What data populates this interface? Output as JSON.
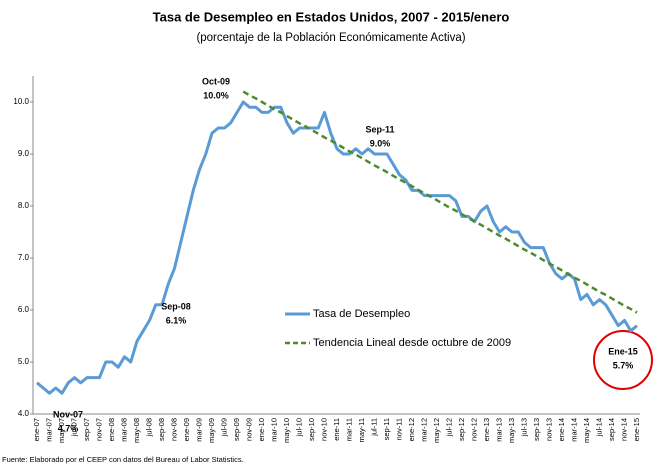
{
  "chart_data": {
    "type": "line",
    "title": "Tasa de Desempleo en Estados Unidos, 2007 - 2015/enero",
    "subtitle": "(porcentaje de la Población Económicamente Activa)",
    "source": "Fuente: Elaborado por el CEEP con datos del Bureau of Labor Statistics.",
    "categories": [
      "ene-07",
      null,
      "mar-07",
      null,
      "may-07",
      null,
      "jul-07",
      null,
      "sep-07",
      null,
      "nov-07",
      null,
      "ene-08",
      null,
      "mar-08",
      null,
      "may-08",
      null,
      "jul-08",
      null,
      "sep-08",
      null,
      "nov-08",
      null,
      "ene-09",
      null,
      "mar-09",
      null,
      "may-09",
      null,
      "jul-09",
      null,
      "sep-09",
      null,
      "nov-09",
      null,
      "ene-10",
      null,
      "mar-10",
      null,
      "may-10",
      null,
      "jul-10",
      null,
      "sep-10",
      null,
      "nov-10",
      null,
      "ene-11",
      null,
      "mar-11",
      null,
      "may-11",
      null,
      "jul-11",
      null,
      "sep-11",
      null,
      "nov-11",
      null,
      "ene-12",
      null,
      "mar-12",
      null,
      "may-12",
      null,
      "jul-12",
      null,
      "sep-12",
      null,
      "nov-12",
      null,
      "ene-13",
      null,
      "mar-13",
      null,
      "may-13",
      null,
      "jul-13",
      null,
      "sep-13",
      null,
      "nov-13",
      null,
      "ene-14",
      null,
      "mar-14",
      null,
      "may-14",
      null,
      "jul-14",
      null,
      "sep-14",
      null,
      "nov-14",
      null,
      "ene-15"
    ],
    "series": [
      {
        "name": "Tasa de Desempleo",
        "color": "#5b9bd5",
        "dashed": false,
        "values": [
          4.6,
          4.5,
          4.4,
          4.5,
          4.4,
          4.6,
          4.7,
          4.6,
          4.7,
          4.7,
          4.7,
          5.0,
          5.0,
          4.9,
          5.1,
          5.0,
          5.4,
          5.6,
          5.8,
          6.1,
          6.1,
          6.5,
          6.8,
          7.3,
          7.8,
          8.3,
          8.7,
          9.0,
          9.4,
          9.5,
          9.5,
          9.6,
          9.8,
          10.0,
          9.9,
          9.9,
          9.8,
          9.8,
          9.9,
          9.9,
          9.6,
          9.4,
          9.5,
          9.5,
          9.5,
          9.5,
          9.8,
          9.4,
          9.1,
          9.0,
          9.0,
          9.1,
          9.0,
          9.1,
          9.0,
          9.0,
          9.0,
          8.8,
          8.6,
          8.5,
          8.3,
          8.3,
          8.2,
          8.2,
          8.2,
          8.2,
          8.2,
          8.1,
          7.8,
          7.8,
          7.7,
          7.9,
          8.0,
          7.7,
          7.5,
          7.6,
          7.5,
          7.5,
          7.3,
          7.2,
          7.2,
          7.2,
          6.9,
          6.7,
          6.6,
          6.7,
          6.6,
          6.2,
          6.3,
          6.1,
          6.2,
          6.1,
          5.9,
          5.7,
          5.8,
          5.6,
          5.7
        ]
      },
      {
        "name": "Tendencia Lineal desde octubre de 2009",
        "color": "#4e8a2e",
        "dashed": true,
        "values": [
          null,
          null,
          null,
          null,
          null,
          null,
          null,
          null,
          null,
          null,
          null,
          null,
          null,
          null,
          null,
          null,
          null,
          null,
          null,
          null,
          null,
          null,
          null,
          null,
          null,
          null,
          null,
          null,
          null,
          null,
          null,
          null,
          null,
          10.2,
          10.13,
          10.07,
          10.0,
          9.93,
          9.86,
          9.8,
          9.73,
          9.66,
          9.59,
          9.53,
          9.46,
          9.39,
          9.32,
          9.26,
          9.19,
          9.12,
          9.05,
          8.99,
          8.92,
          8.85,
          8.78,
          8.72,
          8.65,
          8.58,
          8.51,
          8.45,
          8.38,
          8.31,
          8.24,
          8.18,
          8.11,
          8.04,
          7.97,
          7.91,
          7.84,
          7.77,
          7.7,
          7.64,
          7.57,
          7.5,
          7.43,
          7.37,
          7.3,
          7.23,
          7.16,
          7.1,
          7.03,
          6.96,
          6.89,
          6.83,
          6.76,
          6.69,
          6.62,
          6.56,
          6.49,
          6.42,
          6.35,
          6.29,
          6.22,
          6.15,
          6.08,
          6.02,
          5.95
        ]
      }
    ],
    "ylim": [
      4,
      10.5
    ],
    "yticks": [
      {
        "value": 4,
        "label": "4.0"
      },
      {
        "value": 5,
        "label": "5.0"
      },
      {
        "value": 6,
        "label": "6.0"
      },
      {
        "value": 7,
        "label": "7.0"
      },
      {
        "value": 8,
        "label": "8.0"
      },
      {
        "value": 9,
        "label": "9.0"
      },
      {
        "value": 10,
        "label": "10.0"
      }
    ],
    "grid": false,
    "legend": "center",
    "annotations": [
      {
        "title": "Oct-09",
        "text": "10.0%"
      },
      {
        "title": "Sep-11",
        "text": "9.0%"
      },
      {
        "title": "Sep-08",
        "text": "6.1%"
      },
      {
        "title": "Nov-07",
        "text": "4.7%"
      },
      {
        "title": "Ene-15",
        "text": "5.7%"
      }
    ]
  }
}
